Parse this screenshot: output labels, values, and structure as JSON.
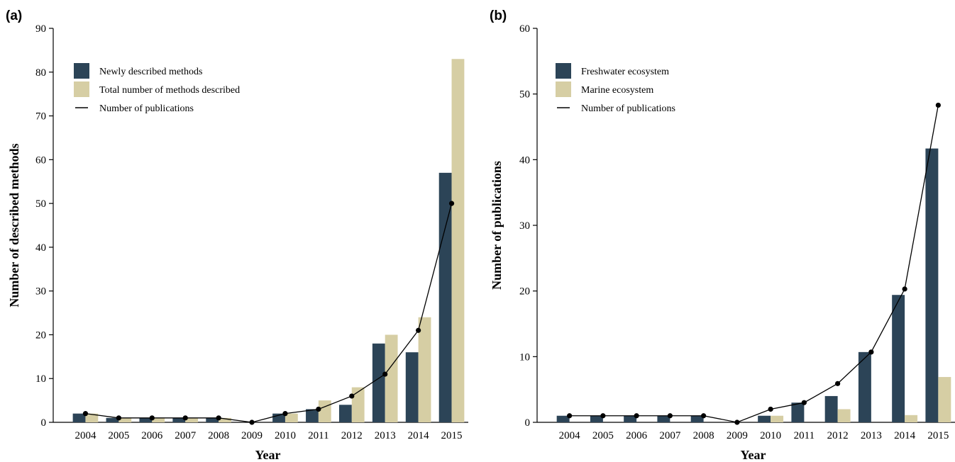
{
  "colors": {
    "dark": "#2c4457",
    "light": "#d6cea4",
    "line": "#000000"
  },
  "chart_data": [
    {
      "type": "bar",
      "panel_label": "(a)",
      "categories": [
        "2004",
        "2005",
        "2006",
        "2007",
        "2008",
        "2009",
        "2010",
        "2011",
        "2012",
        "2013",
        "2014",
        "2015"
      ],
      "ylim": [
        0,
        90
      ],
      "yticks": [
        "0",
        "10",
        "20",
        "30",
        "40",
        "50",
        "60",
        "70",
        "80",
        "90"
      ],
      "xlabel": "Year",
      "ylabel": "Number of described methods",
      "grid": false,
      "legend_position": "top-left",
      "series": [
        {
          "name": "Newly described methods",
          "kind": "bar",
          "color": "#2c4457",
          "values": [
            2,
            1,
            1,
            1,
            1,
            0,
            2,
            3,
            4,
            18,
            16,
            57
          ]
        },
        {
          "name": "Total number of methods described",
          "kind": "bar",
          "color": "#d6cea4",
          "values": [
            2,
            1,
            1,
            1,
            1,
            0,
            2,
            5,
            8,
            20,
            24,
            83
          ]
        },
        {
          "name": "Number of publications",
          "kind": "line",
          "color": "#000000",
          "values": [
            2,
            1,
            1,
            1,
            1,
            0,
            2,
            3,
            6,
            11,
            21,
            50
          ]
        }
      ]
    },
    {
      "type": "bar",
      "panel_label": "(b)",
      "categories": [
        "2004",
        "2005",
        "2006",
        "2007",
        "2008",
        "2009",
        "2010",
        "2011",
        "2012",
        "2013",
        "2014",
        "2015"
      ],
      "ylim": [
        0,
        60
      ],
      "yticks": [
        "0",
        "10",
        "20",
        "30",
        "40",
        "50",
        "60"
      ],
      "xlabel": "Year",
      "ylabel": "Number of publications",
      "grid": false,
      "legend_position": "top-left",
      "series": [
        {
          "name": "Freshwater ecosystem",
          "kind": "bar",
          "color": "#2c4457",
          "values": [
            1,
            1,
            1,
            1,
            1,
            0,
            1,
            3,
            4,
            10.7,
            19.4,
            41.7
          ]
        },
        {
          "name": "Marine ecosystem",
          "kind": "bar",
          "color": "#d6cea4",
          "values": [
            0,
            0,
            0,
            0,
            0,
            0,
            1,
            0,
            2,
            0,
            1.1,
            6.9
          ]
        },
        {
          "name": "Number of publications",
          "kind": "line",
          "color": "#000000",
          "values": [
            1,
            1,
            1,
            1,
            1,
            0,
            2,
            3,
            5.9,
            10.7,
            20.3,
            48.3
          ]
        }
      ]
    }
  ]
}
